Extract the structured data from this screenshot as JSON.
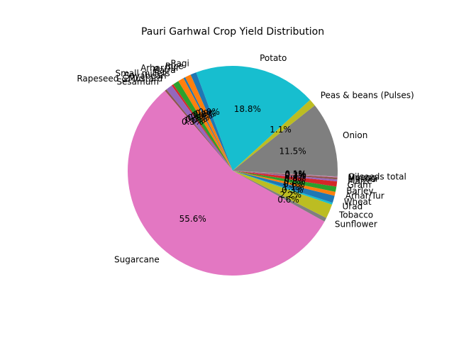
{
  "chart_data": {
    "type": "pie",
    "title": "Pauri Garhwal Crop Yield Distribution",
    "start_angle_deg": 116.9,
    "direction": "counterclockwise",
    "slices": [
      {
        "label": "Arhar/Tur",
        "value": 0.3,
        "pct_label": "0.3%",
        "color": "#1f77b4"
      },
      {
        "label": "Bajra",
        "value": 0.9,
        "pct_label": "0.9%",
        "color": "#ff7f0e"
      },
      {
        "label": "Small millets",
        "value": 0.9,
        "pct_label": "0.9%",
        "color": "#2ca02c"
      },
      {
        "label": "Soyabean",
        "value": 0.3,
        "pct_label": "0.3%",
        "color": "#d62728"
      },
      {
        "label": "Rapeseed &Mustard",
        "value": 1.0,
        "pct_label": "1.0%",
        "color": "#9467bd"
      },
      {
        "label": "Sesamum",
        "value": 0.3,
        "pct_label": "0.3%",
        "color": "#8c564b"
      },
      {
        "label": "Sugarcane",
        "value": 55.6,
        "pct_label": "55.6%",
        "color": "#e377c2"
      },
      {
        "label": "Sunflower",
        "value": 0.6,
        "pct_label": "0.6%",
        "color": "#7f7f7f"
      },
      {
        "label": "Tobacco",
        "value": 2.2,
        "pct_label": "2.2%",
        "color": "#bcbd22"
      },
      {
        "label": "Urad",
        "value": 0.3,
        "pct_label": "0.3%",
        "color": "#17becf"
      },
      {
        "label": "Wheat",
        "value": 1.1,
        "pct_label": "1.1%",
        "color": "#1f77b4"
      },
      {
        "label": "Arhar/Tur",
        "value": 0.6,
        "pct_label": "0.6%",
        "color": "#ff7f0e"
      },
      {
        "label": "Barley",
        "value": 0.8,
        "pct_label": "0.8%",
        "color": "#2ca02c"
      },
      {
        "label": "Gram",
        "value": 0.8,
        "pct_label": "0.8%",
        "color": "#d62728"
      },
      {
        "label": "Maize",
        "value": 0.3,
        "pct_label": "0.3%",
        "color": "#9467bd"
      },
      {
        "label": "Masoor",
        "value": 0.3,
        "pct_label": "0.3%",
        "color": "#8c564b"
      },
      {
        "label": "Moong",
        "value": 0.1,
        "pct_label": "0.1%",
        "color": "#e377c2"
      },
      {
        "label": "Oilseeds total",
        "value": 0.1,
        "pct_label": "0.1%",
        "color": "#7f7f7f"
      },
      {
        "label": "Onion",
        "value": 11.5,
        "pct_label": "11.5%",
        "color": "#7f7f7f"
      },
      {
        "label": "Peas & beans (Pulses)",
        "value": 1.1,
        "pct_label": "1.1%",
        "color": "#bcbd22"
      },
      {
        "label": "Potato",
        "value": 18.8,
        "pct_label": "18.8%",
        "color": "#17becf"
      },
      {
        "label": "Ragi",
        "value": 0.9,
        "pct_label": "0.9%",
        "color": "#1f77b4"
      },
      {
        "label": "Rice",
        "value": 0.9,
        "pct_label": "0.9%",
        "color": "#ff7f0e"
      }
    ]
  }
}
